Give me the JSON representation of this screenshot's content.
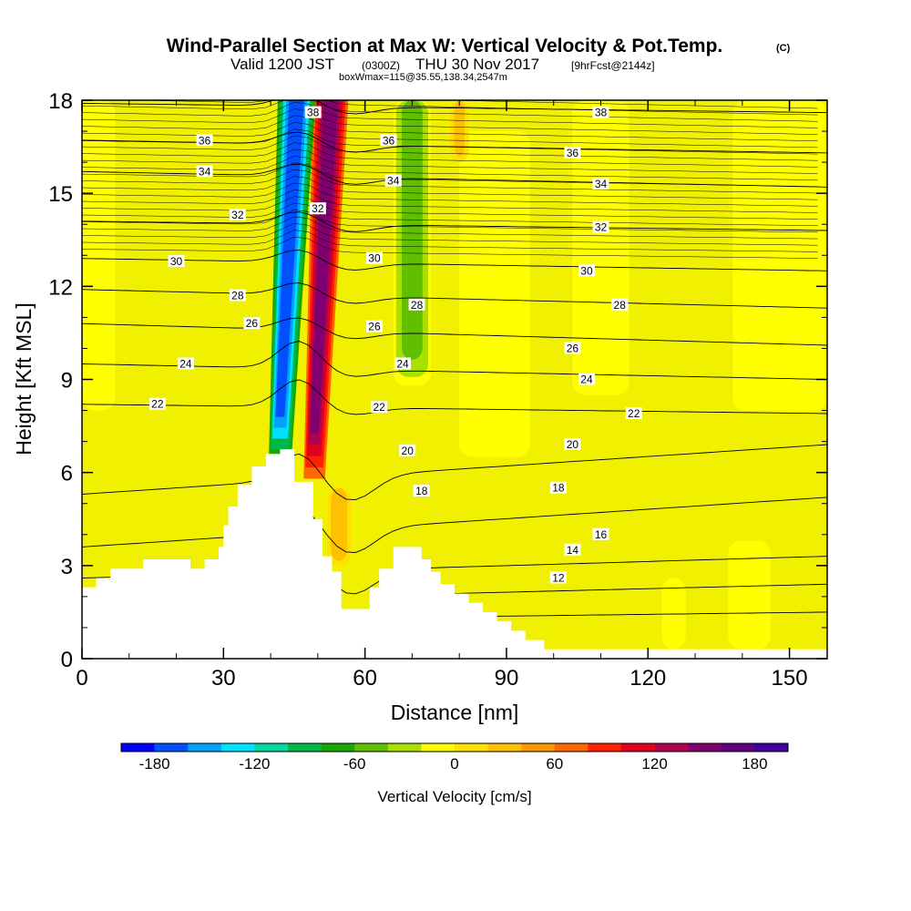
{
  "chart_data": {
    "type": "heatmap",
    "title": "Wind-Parallel Section at Max W: Vertical Velocity & Pot.Temp.",
    "title_mark": "(C)",
    "subtitle_valid": "Valid 1200 JST",
    "subtitle_utc": "(0300Z)",
    "subtitle_date": "THU 30 Nov 2017",
    "subtitle_fcst": "[9hrFcst@2144z]",
    "subtitle_box": "boxWmax=115@35.55,138.34,2547m",
    "xlabel": "Distance [nm]",
    "ylabel": "Height [Kft MSL]",
    "xlim": [
      0,
      158
    ],
    "ylim": [
      0,
      18
    ],
    "x_ticks": [
      "0",
      "30",
      "60",
      "90",
      "120",
      "150"
    ],
    "x_tick_values": [
      0,
      30,
      60,
      90,
      120,
      150
    ],
    "y_ticks": [
      "0",
      "3",
      "6",
      "9",
      "12",
      "15",
      "18"
    ],
    "y_tick_values": [
      0,
      3,
      6,
      9,
      12,
      15,
      18
    ],
    "colorbar": {
      "label": "Vertical Velocity [cm/s]",
      "tick_labels": [
        "-180",
        "-120",
        "-60",
        "0",
        "60",
        "120",
        "180"
      ],
      "tick_values": [
        -180,
        -120,
        -60,
        0,
        60,
        120,
        180
      ],
      "range": [
        -200,
        200
      ],
      "colors": [
        "#0000ff",
        "#0050ff",
        "#00a0ff",
        "#00e0ff",
        "#00d8a0",
        "#00b848",
        "#18a800",
        "#60c000",
        "#a8e000",
        "#ffff00",
        "#ffe000",
        "#ffc000",
        "#ff9800",
        "#ff6800",
        "#ff2000",
        "#e00020",
        "#b00050",
        "#800070",
        "#600080",
        "#4000a0"
      ]
    },
    "background_color": "#f0f000",
    "velocity_features": [
      {
        "kind": "updraft",
        "x_start": 45.5,
        "x_end": 53,
        "y_bottom": 5.8,
        "y_top": 18,
        "peak_cm_s": 150
      },
      {
        "kind": "downdraft",
        "x_start": 38,
        "x_end": 46,
        "y_bottom": 6.4,
        "y_top": 18,
        "peak_cm_s": -180
      },
      {
        "kind": "weak-sink",
        "x_start": 66,
        "x_end": 74,
        "y_bottom": 8.8,
        "y_top": 18,
        "peak_cm_s": -50
      },
      {
        "kind": "weak-sink",
        "x_start": 0,
        "x_end": 7,
        "y_bottom": 8,
        "y_top": 18,
        "peak_cm_s": -20
      },
      {
        "kind": "weak-sink",
        "x_start": 80,
        "x_end": 95,
        "y_bottom": 6.5,
        "y_top": 17,
        "peak_cm_s": -15
      },
      {
        "kind": "weak-sink",
        "x_start": 137,
        "x_end": 146,
        "y_bottom": 0.3,
        "y_top": 3.8,
        "peak_cm_s": -15
      },
      {
        "kind": "weak-sink",
        "x_start": 104,
        "x_end": 116,
        "y_bottom": 8.5,
        "y_top": 18,
        "peak_cm_s": -10
      },
      {
        "kind": "weak-sink",
        "x_start": 138,
        "x_end": 158,
        "y_bottom": 8,
        "y_top": 18,
        "peak_cm_s": -12
      },
      {
        "kind": "weak-sink",
        "x_start": 123,
        "x_end": 128,
        "y_bottom": 0.3,
        "y_top": 2.6,
        "peak_cm_s": -10
      },
      {
        "kind": "weak-rise",
        "x_start": 52,
        "x_end": 57,
        "y_bottom": 3,
        "y_top": 5.5,
        "peak_cm_s": 35
      },
      {
        "kind": "weak-rise",
        "x_start": 78,
        "x_end": 82,
        "y_bottom": 16,
        "y_top": 18,
        "peak_cm_s": 25
      }
    ],
    "terrain_profile": [
      [
        0,
        2.3
      ],
      [
        3,
        2.3
      ],
      [
        3,
        2.6
      ],
      [
        6,
        2.6
      ],
      [
        6,
        2.9
      ],
      [
        13,
        2.9
      ],
      [
        13,
        3.2
      ],
      [
        23,
        3.2
      ],
      [
        23,
        2.9
      ],
      [
        26,
        2.9
      ],
      [
        26,
        3.2
      ],
      [
        29,
        3.2
      ],
      [
        29,
        3.6
      ],
      [
        30,
        3.6
      ],
      [
        30,
        4.3
      ],
      [
        31,
        4.3
      ],
      [
        31,
        4.9
      ],
      [
        33,
        4.9
      ],
      [
        33,
        5.6
      ],
      [
        36,
        5.6
      ],
      [
        36,
        6.2
      ],
      [
        39,
        6.2
      ],
      [
        39,
        6.6
      ],
      [
        42,
        6.6
      ],
      [
        42,
        6.75
      ],
      [
        45,
        6.75
      ],
      [
        45,
        5.7
      ],
      [
        49,
        5.7
      ],
      [
        49,
        4.5
      ],
      [
        51,
        4.5
      ],
      [
        51,
        3.3
      ],
      [
        53,
        3.3
      ],
      [
        53,
        2.8
      ],
      [
        55,
        2.8
      ],
      [
        55,
        1.6
      ],
      [
        61,
        1.6
      ],
      [
        61,
        2.3
      ],
      [
        63,
        2.3
      ],
      [
        63,
        2.9
      ],
      [
        66,
        2.9
      ],
      [
        66,
        3.6
      ],
      [
        72,
        3.6
      ],
      [
        72,
        3.2
      ],
      [
        74,
        3.2
      ],
      [
        74,
        2.8
      ],
      [
        76,
        2.8
      ],
      [
        76,
        2.4
      ],
      [
        79,
        2.4
      ],
      [
        79,
        2.1
      ],
      [
        82,
        2.1
      ],
      [
        82,
        1.8
      ],
      [
        85,
        1.8
      ],
      [
        85,
        1.5
      ],
      [
        88,
        1.5
      ],
      [
        88,
        1.2
      ],
      [
        91,
        1.2
      ],
      [
        91,
        0.9
      ],
      [
        94,
        0.9
      ],
      [
        94,
        0.6
      ],
      [
        98,
        0.6
      ],
      [
        98,
        0.3
      ],
      [
        158,
        0.3
      ]
    ],
    "isentrope_series": [
      {
        "label": "12",
        "y_left": 1.2,
        "y_right": 1.5
      },
      {
        "label": "14",
        "y_left": 1.8,
        "y_right": 2.4
      },
      {
        "label": "16",
        "y_left": 2.6,
        "y_right": 3.3
      },
      {
        "label": "18",
        "y_left": 3.6,
        "y_right": 5.2
      },
      {
        "label": "20",
        "y_left": 5.3,
        "y_right": 6.9
      },
      {
        "label": "22",
        "y_left": 8.2,
        "y_right": 7.9
      },
      {
        "label": "24",
        "y_left": 9.5,
        "y_right": 9.0
      },
      {
        "label": "26",
        "y_left": 10.8,
        "y_right": 10.1
      },
      {
        "label": "28",
        "y_left": 11.9,
        "y_right": 11.3
      },
      {
        "label": "30",
        "y_left": 12.9,
        "y_right": 12.5
      },
      {
        "label": "32",
        "y_left": 14.1,
        "y_right": 13.8
      },
      {
        "label": "34",
        "y_left": 15.7,
        "y_right": 15.2
      },
      {
        "label": "36",
        "y_left": 16.7,
        "y_right": 16.3
      },
      {
        "label": "38",
        "y_left": 17.9,
        "y_right": 17.6
      }
    ],
    "contour_labels": [
      {
        "text": "36",
        "x": 26,
        "y": 16.7
      },
      {
        "text": "34",
        "x": 26,
        "y": 15.7
      },
      {
        "text": "32",
        "x": 33,
        "y": 14.3
      },
      {
        "text": "30",
        "x": 20,
        "y": 12.8
      },
      {
        "text": "28",
        "x": 33,
        "y": 11.7
      },
      {
        "text": "26",
        "x": 36,
        "y": 10.8
      },
      {
        "text": "24",
        "x": 22,
        "y": 9.5
      },
      {
        "text": "22",
        "x": 16,
        "y": 8.2
      },
      {
        "text": "38",
        "x": 49,
        "y": 17.6
      },
      {
        "text": "32",
        "x": 50,
        "y": 14.5
      },
      {
        "text": "36",
        "x": 65,
        "y": 16.7
      },
      {
        "text": "34",
        "x": 66,
        "y": 15.4
      },
      {
        "text": "30",
        "x": 62,
        "y": 12.9
      },
      {
        "text": "26",
        "x": 62,
        "y": 10.7
      },
      {
        "text": "22",
        "x": 63,
        "y": 8.1
      },
      {
        "text": "28",
        "x": 71,
        "y": 11.4
      },
      {
        "text": "24",
        "x": 68,
        "y": 9.5
      },
      {
        "text": "20",
        "x": 69,
        "y": 6.7
      },
      {
        "text": "18",
        "x": 72,
        "y": 5.4
      },
      {
        "text": "38",
        "x": 110,
        "y": 17.6
      },
      {
        "text": "36",
        "x": 104,
        "y": 16.3
      },
      {
        "text": "34",
        "x": 110,
        "y": 15.3
      },
      {
        "text": "32",
        "x": 110,
        "y": 13.9
      },
      {
        "text": "30",
        "x": 107,
        "y": 12.5
      },
      {
        "text": "28",
        "x": 114,
        "y": 11.4
      },
      {
        "text": "26",
        "x": 104,
        "y": 10.0
      },
      {
        "text": "24",
        "x": 107,
        "y": 9.0
      },
      {
        "text": "22",
        "x": 117,
        "y": 7.9
      },
      {
        "text": "20",
        "x": 104,
        "y": 6.9
      },
      {
        "text": "18",
        "x": 101,
        "y": 5.5
      },
      {
        "text": "16",
        "x": 110,
        "y": 4.0
      },
      {
        "text": "14",
        "x": 104,
        "y": 3.5
      },
      {
        "text": "12",
        "x": 101,
        "y": 2.6
      }
    ]
  }
}
